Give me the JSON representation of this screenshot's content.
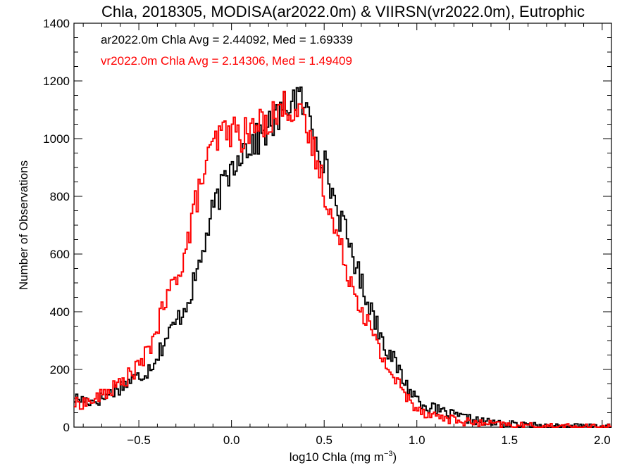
{
  "chart_data": {
    "type": "line",
    "title": "Chla, 2018305, MODISA(ar2022.0m) & VIIRSN(vr2022.0m), Eutrophic",
    "xlabel_main": "log10 Chla (mg m",
    "xlabel_exp": "−3",
    "xlabel_end": ")",
    "ylabel": "Number of Observations",
    "xlim": [
      -0.85,
      2.05
    ],
    "ylim": [
      0,
      1400
    ],
    "x_ticks": [
      -0.5,
      0.0,
      0.5,
      1.0,
      1.5,
      2.0
    ],
    "x_tick_labels": [
      "−0.5",
      "0.0",
      "0.5",
      "1.0",
      "1.5",
      "2.0"
    ],
    "y_ticks": [
      0,
      200,
      400,
      600,
      800,
      1000,
      1200,
      1400
    ],
    "y_tick_labels": [
      "0",
      "200",
      "400",
      "600",
      "800",
      "1000",
      "1200",
      "1400"
    ],
    "grid": false,
    "legend": "top-left",
    "annotations": [
      {
        "text": "ar2022.0m Chla Avg = 2.44092, Med = 1.69339",
        "color": "#000000"
      },
      {
        "text": "vr2022.0m Chla Avg = 2.14306, Med = 1.49409",
        "color": "#ff0000"
      }
    ],
    "series": [
      {
        "color": "#000000",
        "x": [
          -0.85,
          -0.75,
          -0.7,
          -0.65,
          -0.6,
          -0.55,
          -0.5,
          -0.45,
          -0.4,
          -0.35,
          -0.3,
          -0.25,
          -0.2,
          -0.15,
          -0.1,
          -0.05,
          0.0,
          0.05,
          0.1,
          0.15,
          0.2,
          0.25,
          0.3,
          0.35,
          0.4,
          0.45,
          0.5,
          0.55,
          0.6,
          0.65,
          0.7,
          0.75,
          0.8,
          0.85,
          0.9,
          0.95,
          1.0,
          1.05,
          1.1,
          1.2,
          1.3,
          1.4,
          1.5,
          1.6,
          1.7,
          1.8,
          1.9,
          2.0,
          2.05
        ],
        "y": [
          100,
          90,
          100,
          120,
          140,
          160,
          175,
          200,
          250,
          310,
          360,
          420,
          500,
          620,
          750,
          830,
          900,
          960,
          980,
          1000,
          1040,
          1070,
          1120,
          1150,
          1100,
          1030,
          920,
          800,
          700,
          610,
          500,
          420,
          330,
          260,
          200,
          140,
          100,
          75,
          60,
          40,
          25,
          15,
          10,
          5,
          4,
          3,
          2,
          1,
          1
        ]
      },
      {
        "color": "#ff0000",
        "x": [
          -0.85,
          -0.75,
          -0.7,
          -0.65,
          -0.6,
          -0.55,
          -0.5,
          -0.45,
          -0.4,
          -0.35,
          -0.3,
          -0.25,
          -0.2,
          -0.15,
          -0.1,
          -0.05,
          0.0,
          0.05,
          0.1,
          0.15,
          0.2,
          0.25,
          0.3,
          0.35,
          0.4,
          0.45,
          0.5,
          0.55,
          0.6,
          0.65,
          0.7,
          0.75,
          0.8,
          0.85,
          0.9,
          0.95,
          1.0,
          1.05,
          1.1,
          1.2,
          1.3,
          1.4,
          1.5,
          1.6,
          1.7,
          1.8,
          1.9,
          2.0,
          2.05
        ],
        "y": [
          80,
          90,
          110,
          130,
          150,
          180,
          210,
          260,
          350,
          440,
          520,
          600,
          760,
          880,
          970,
          1020,
          1030,
          1010,
          1020,
          1050,
          1070,
          1090,
          1120,
          1100,
          1030,
          950,
          830,
          700,
          600,
          500,
          420,
          340,
          260,
          200,
          150,
          100,
          70,
          50,
          40,
          25,
          15,
          10,
          7,
          4,
          3,
          2,
          1,
          1,
          1
        ]
      }
    ]
  }
}
